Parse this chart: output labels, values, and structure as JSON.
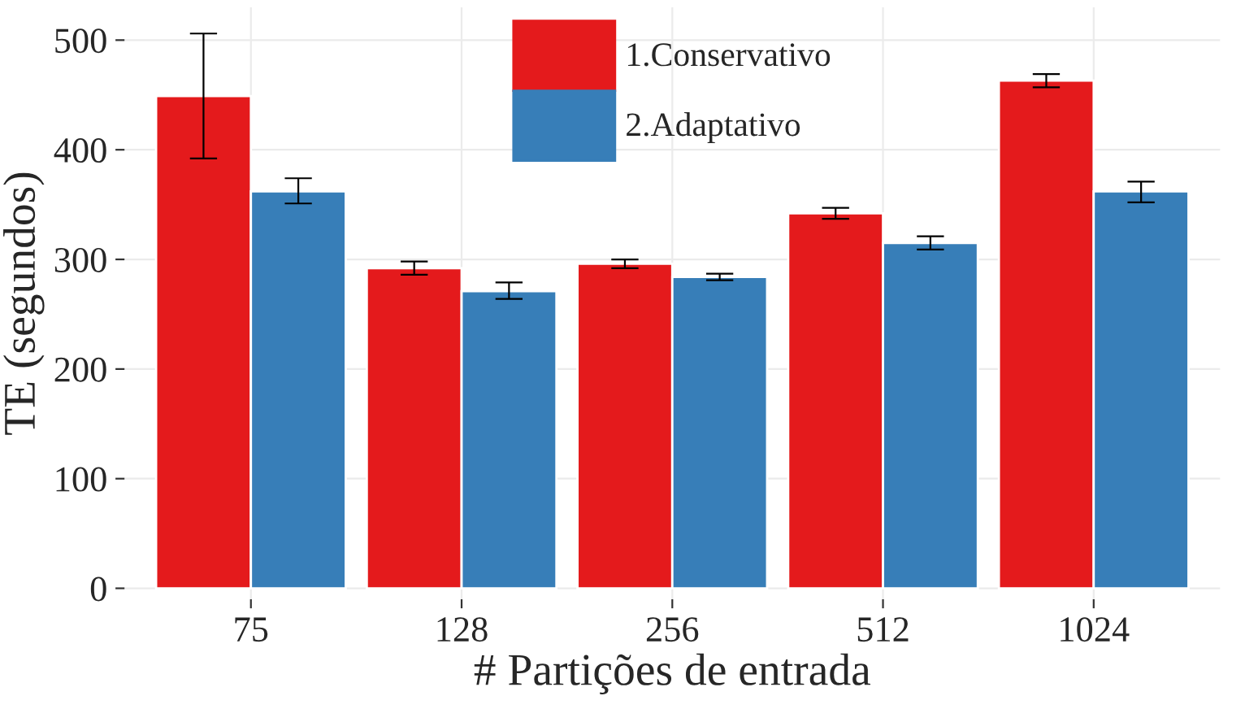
{
  "chart_data": {
    "type": "bar",
    "xlabel": "# Partições de entrada",
    "ylabel": "TE (segundos)",
    "categories": [
      "75",
      "128",
      "256",
      "512",
      "1024"
    ],
    "series": [
      {
        "name": "1.Conservativo",
        "color": "#e41a1c",
        "values": [
          449,
          292,
          296,
          342,
          463
        ],
        "errors": [
          [
            392,
            506
          ],
          [
            286,
            298
          ],
          [
            292,
            300
          ],
          [
            337,
            347
          ],
          [
            457,
            469
          ]
        ]
      },
      {
        "name": "2.Adaptativo",
        "color": "#377eb8",
        "values": [
          362,
          271,
          284,
          315,
          362
        ],
        "errors": [
          [
            351,
            374
          ],
          [
            264,
            279
          ],
          [
            281,
            287
          ],
          [
            309,
            321
          ],
          [
            352,
            371
          ]
        ]
      }
    ],
    "ylim": [
      -10,
      530
    ],
    "yticks": [
      0,
      100,
      200,
      300,
      400,
      500
    ],
    "grid": true,
    "legend": "top"
  }
}
